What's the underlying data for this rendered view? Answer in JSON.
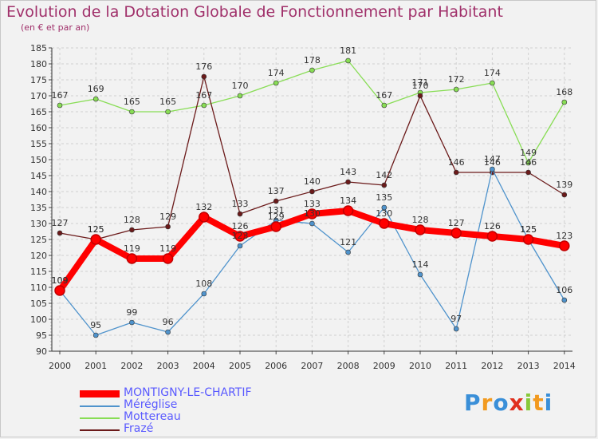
{
  "title": "Evolution de la Dotation Globale de Fonctionnement par Habitant",
  "subtitle": "(en € et par an)",
  "logo_text": "Proxiti",
  "chart_data": {
    "type": "line",
    "title": "Evolution de la Dotation Globale de Fonctionnement par Habitant",
    "subtitle": "(en € et par an)",
    "x": [
      "2000",
      "2001",
      "2002",
      "2003",
      "2004",
      "2005",
      "2006",
      "2007",
      "2008",
      "2009",
      "2010",
      "2011",
      "2012",
      "2013",
      "2014"
    ],
    "ylim": [
      90,
      185
    ],
    "yticks": [
      90,
      95,
      100,
      105,
      110,
      115,
      120,
      125,
      130,
      135,
      140,
      145,
      150,
      155,
      160,
      165,
      170,
      175,
      180,
      185
    ],
    "grid": true,
    "legend_position": "bottom-left",
    "series": [
      {
        "name": "MONTIGNY-LE-CHARTIF",
        "color": "#ff0000",
        "values": [
          109,
          125,
          119,
          119,
          132,
          126,
          129,
          133,
          134,
          130,
          128,
          127,
          126,
          125,
          123
        ]
      },
      {
        "name": "Méréglise",
        "color": "#4f93cc",
        "values": [
          109,
          95,
          99,
          96,
          108,
          123,
          131,
          130,
          121,
          135,
          114,
          97,
          147,
          125,
          106
        ]
      },
      {
        "name": "Mottereau",
        "color": "#88dd55",
        "values": [
          167,
          169,
          165,
          165,
          167,
          170,
          174,
          178,
          181,
          167,
          171,
          172,
          174,
          149,
          168
        ]
      },
      {
        "name": "Frazé",
        "color": "#6b1a1a",
        "values": [
          127,
          125,
          128,
          129,
          176,
          133,
          137,
          140,
          143,
          142,
          170,
          146,
          146,
          146,
          139
        ]
      }
    ]
  }
}
